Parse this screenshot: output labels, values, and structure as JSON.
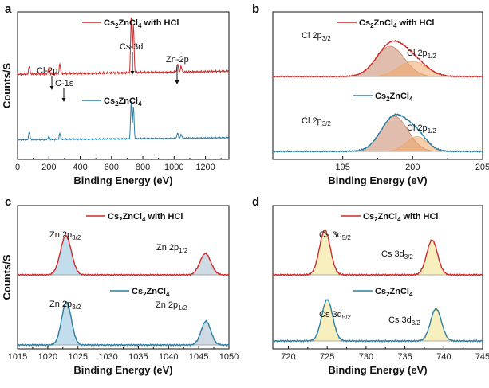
{
  "chart_data": [
    {
      "panel": "a",
      "type": "line",
      "xlabel": "Binding Energy (eV)",
      "ylabel": "Counts/S",
      "xlim": [
        0,
        1350
      ],
      "xticks": [
        0,
        200,
        400,
        600,
        800,
        1000,
        1200
      ],
      "series": [
        {
          "name": "Cs2ZnCl4 with HCl",
          "legend": {
            "base": "Cs",
            "s1": "2",
            "mid": "ZnCl",
            "s2": "4",
            "suffix": " with HCl"
          },
          "color": "#cc2b2b",
          "peaks": [
            [
              75,
              0.14
            ],
            [
              200,
              0.1
            ],
            [
              270,
              0.16
            ],
            [
              726,
              0.92
            ],
            [
              740,
              0.8
            ],
            [
              1022,
              0.14
            ],
            [
              1045,
              0.1
            ]
          ]
        },
        {
          "name": "Cs2ZnCl4",
          "legend": {
            "base": "Cs",
            "s1": "2",
            "mid": "ZnCl",
            "s2": "4",
            "suffix": ""
          },
          "color": "#2b7ea3",
          "peaks": [
            [
              75,
              0.2
            ],
            [
              200,
              0.08
            ],
            [
              270,
              0.15
            ],
            [
              726,
              0.95
            ],
            [
              740,
              0.82
            ],
            [
              1022,
              0.14
            ],
            [
              1045,
              0.1
            ]
          ]
        }
      ],
      "annotations": [
        {
          "label": "Cl-2p",
          "x": 200
        },
        {
          "label": "C-1s",
          "x": 285
        },
        {
          "label": "Cs-3d",
          "x": 726
        },
        {
          "label": "Zn-2p",
          "x": 1022
        }
      ]
    },
    {
      "panel": "b",
      "type": "line",
      "xlabel": "Binding Energy (eV)",
      "xlim": [
        190,
        205
      ],
      "xticks": [
        195,
        200,
        205
      ],
      "series": [
        {
          "name": "Cs2ZnCl4 with HCl",
          "legend": {
            "base": "Cs",
            "s1": "2",
            "mid": "ZnCl",
            "s2": "4",
            "suffix": " with HCl"
          },
          "color": "#cc2b2b",
          "components": [
            {
              "label": "Cl 2p",
              "sub": "3/2",
              "center": 198.4,
              "height": 1.0,
              "width": 1.0,
              "fill": "#c9866a"
            },
            {
              "label": "Cl 2p",
              "sub": "1/2",
              "center": 200.0,
              "height": 0.5,
              "width": 1.0,
              "fill": "#f0a768"
            }
          ]
        },
        {
          "name": "Cs2ZnCl4",
          "legend": {
            "base": "Cs",
            "s1": "2",
            "mid": "ZnCl",
            "s2": "4",
            "suffix": ""
          },
          "color": "#2b7ea3",
          "components": [
            {
              "label": "Cl 2p",
              "sub": "3/2",
              "center": 198.7,
              "height": 1.0,
              "width": 0.95,
              "fill": "#c9866a"
            },
            {
              "label": "Cl 2p",
              "sub": "1/2",
              "center": 200.3,
              "height": 0.42,
              "width": 0.75,
              "fill": "#f0a768"
            }
          ]
        }
      ]
    },
    {
      "panel": "c",
      "type": "line",
      "xlabel": "Binding Energy (eV)",
      "ylabel": "Counts/S",
      "xlim": [
        1015,
        1050
      ],
      "xticks": [
        1015,
        1020,
        1025,
        1030,
        1035,
        1040,
        1045,
        1050
      ],
      "series": [
        {
          "name": "Cs2ZnCl4 with HCl",
          "legend": {
            "base": "Cs",
            "s1": "2",
            "mid": "ZnCl",
            "s2": "4",
            "suffix": " with HCl"
          },
          "color": "#cc2b2b",
          "components": [
            {
              "label": "Zn 2p",
              "sub": "3/2",
              "center": 1023.0,
              "height": 1.0,
              "width": 0.9,
              "fill": "#8fc3df"
            },
            {
              "label": "Zn 2p",
              "sub": "1/2",
              "center": 1046.1,
              "height": 0.55,
              "width": 0.9,
              "fill": "#a9bccd"
            }
          ]
        },
        {
          "name": "Cs2ZnCl4",
          "legend": {
            "base": "Cs",
            "s1": "2",
            "mid": "ZnCl",
            "s2": "4",
            "suffix": ""
          },
          "color": "#2b7ea3",
          "components": [
            {
              "label": "Zn 2p",
              "sub": "3/2",
              "center": 1023.1,
              "height": 1.0,
              "width": 0.8,
              "fill": "#8fc3df"
            },
            {
              "label": "Zn 2p",
              "sub": "1/2",
              "center": 1046.2,
              "height": 0.55,
              "width": 0.8,
              "fill": "#a9bccd"
            }
          ]
        }
      ]
    },
    {
      "panel": "d",
      "type": "line",
      "xlabel": "Binding Energy (eV)",
      "xlim": [
        718,
        745
      ],
      "xticks": [
        720,
        725,
        730,
        735,
        740,
        745
      ],
      "series": [
        {
          "name": "Cs2ZnCl4 with HCl",
          "legend": {
            "base": "Cs",
            "s1": "2",
            "mid": "ZnCl",
            "s2": "4",
            "suffix": " with HCl"
          },
          "color": "#cc2b2b",
          "components": [
            {
              "label": "Cs 3d",
              "sub": "5/2",
              "center": 724.7,
              "height": 1.0,
              "width": 0.7,
              "fill": "#f2e28a"
            },
            {
              "label": "Cs 3d",
              "sub": "3/2",
              "center": 738.5,
              "height": 0.78,
              "width": 0.7,
              "fill": "#f2e28a"
            }
          ]
        },
        {
          "name": "Cs2ZnCl4",
          "legend": {
            "base": "Cs",
            "s1": "2",
            "mid": "ZnCl",
            "s2": "4",
            "suffix": ""
          },
          "color": "#2b7ea3",
          "components": [
            {
              "label": "Cs 3d",
              "sub": "5/2",
              "center": 725.0,
              "height": 1.0,
              "width": 0.7,
              "fill": "#f2e28a"
            },
            {
              "label": "Cs 3d",
              "sub": "3/2",
              "center": 739.0,
              "height": 0.78,
              "width": 0.7,
              "fill": "#f2e28a"
            }
          ]
        }
      ]
    }
  ]
}
